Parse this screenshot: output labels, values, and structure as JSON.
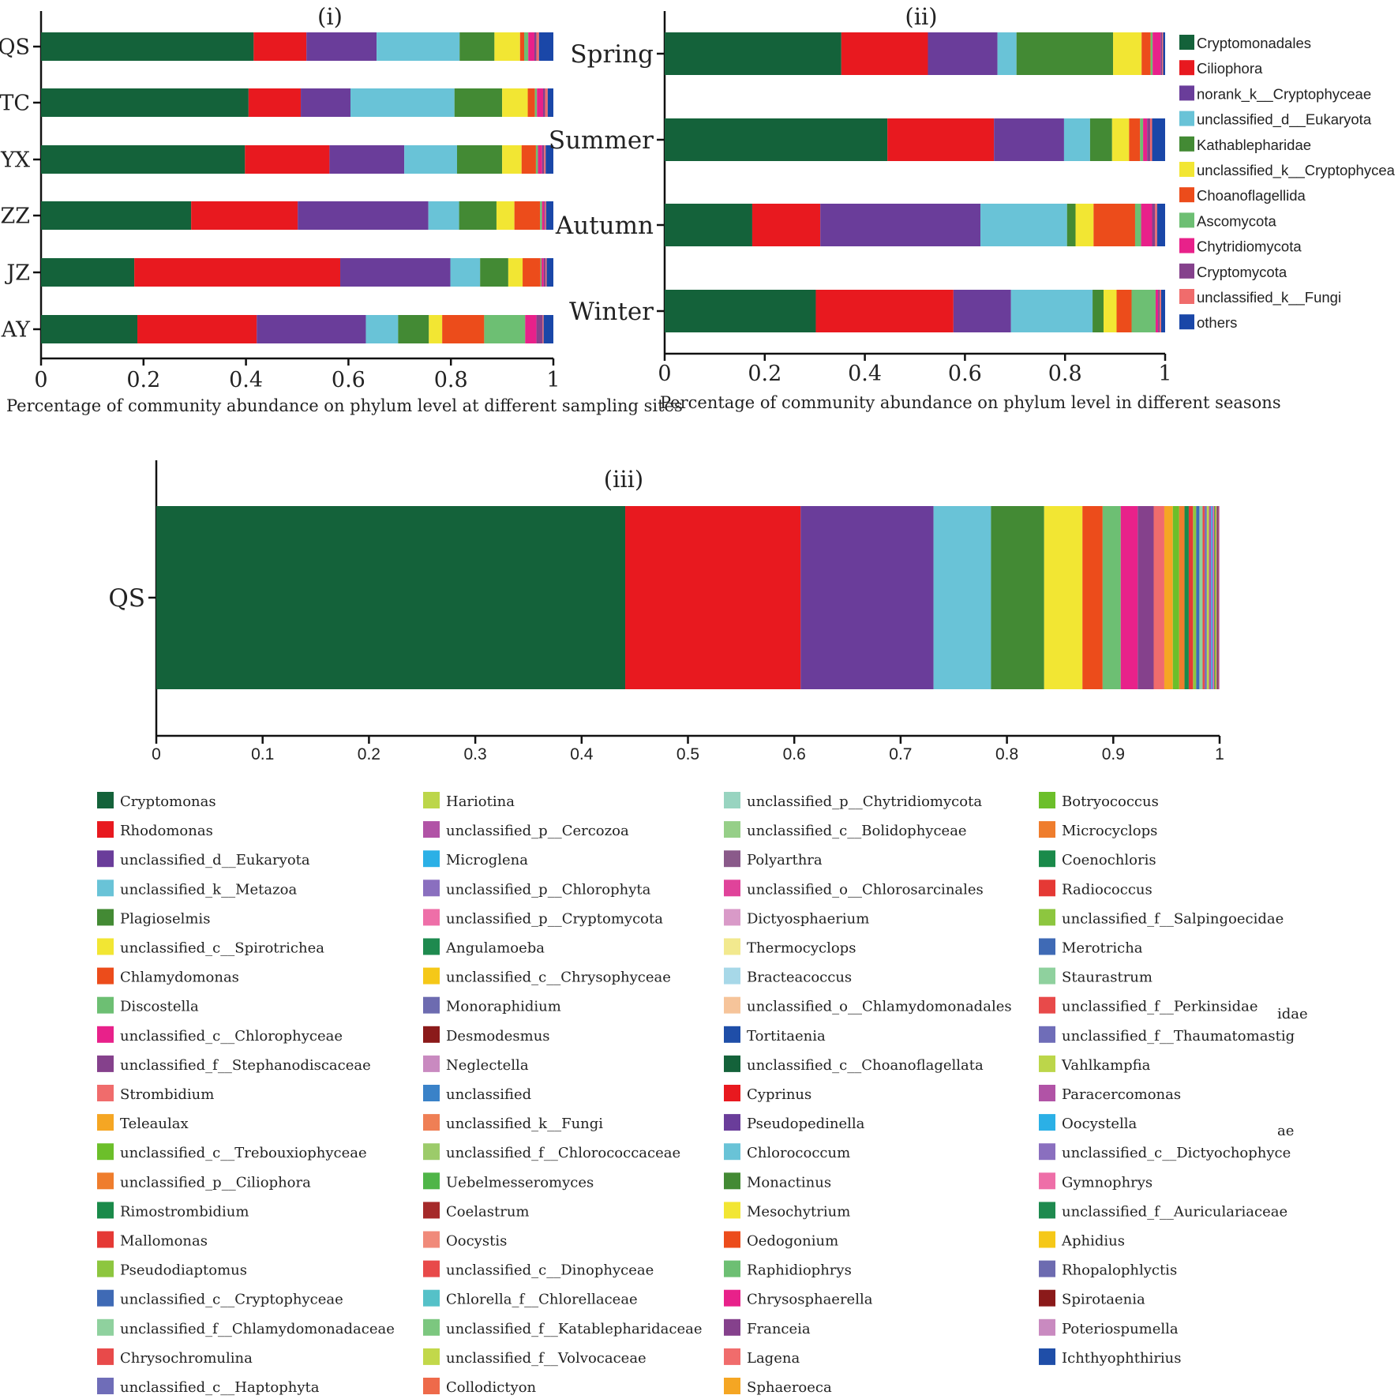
{
  "colors": {
    "Cryptomonadales": "#14623a",
    "Ciliophora": "#e8191f",
    "norank_k__Cryptophyceae": "#6a3d9a",
    "unclassified_d__Eukaryota": "#69c3d7",
    "Kathablepharidae": "#438a34",
    "unclassified_k__Cryptophycea": "#f2e633",
    "Choanoflagellida": "#ec4c1b",
    "Ascomycota": "#6dbf73",
    "Chytridiomycota": "#e8218a",
    "Cryptomycota": "#85418c",
    "unclassified_k__Fungi": "#f06c6c",
    "others": "#1a47a8"
  },
  "chart_data": [
    {
      "id": "i",
      "type": "bar",
      "orientation": "horizontal",
      "stacked": true,
      "title": "(i)",
      "xlabel": "Percentage of community abundance on phylum level at different sampling sites",
      "ylabel": "",
      "xlim": [
        0,
        1
      ],
      "x_ticks": [
        "0",
        "0.2",
        "0.4",
        "0.6",
        "0.8",
        "1"
      ],
      "categories": [
        "QS",
        "TC",
        "YX",
        "ZZ",
        "JZ",
        "AY"
      ],
      "series": [
        {
          "name": "Cryptomonadales",
          "values": [
            0.415,
            0.405,
            0.398,
            0.293,
            0.182,
            0.188
          ]
        },
        {
          "name": "Ciliophora",
          "values": [
            0.103,
            0.102,
            0.165,
            0.208,
            0.402,
            0.233
          ]
        },
        {
          "name": "norank_k__Cryptophyceae",
          "values": [
            0.137,
            0.097,
            0.146,
            0.255,
            0.215,
            0.213
          ]
        },
        {
          "name": "unclassified_d__Eukaryota",
          "values": [
            0.162,
            0.203,
            0.103,
            0.06,
            0.058,
            0.063
          ]
        },
        {
          "name": "Kathablepharidae",
          "values": [
            0.068,
            0.093,
            0.088,
            0.073,
            0.055,
            0.06
          ]
        },
        {
          "name": "unclassified_k__Cryptophycea",
          "values": [
            0.05,
            0.05,
            0.038,
            0.035,
            0.028,
            0.026
          ]
        },
        {
          "name": "Choanoflagellida",
          "values": [
            0.008,
            0.014,
            0.028,
            0.05,
            0.035,
            0.082
          ]
        },
        {
          "name": "Ascomycota",
          "values": [
            0.008,
            0.004,
            0.004,
            0.004,
            0.002,
            0.08
          ]
        },
        {
          "name": "Chytridiomycota",
          "values": [
            0.012,
            0.012,
            0.008,
            0.004,
            0.004,
            0.022
          ]
        },
        {
          "name": "Cryptomycota",
          "values": [
            0.004,
            0.004,
            0.004,
            0.002,
            0.004,
            0.012
          ]
        },
        {
          "name": "unclassified_k__Fungi",
          "values": [
            0.005,
            0.005,
            0.003,
            0.002,
            0.002,
            0.002
          ]
        },
        {
          "name": "others",
          "values": [
            0.028,
            0.011,
            0.015,
            0.014,
            0.013,
            0.019
          ]
        }
      ]
    },
    {
      "id": "ii",
      "type": "bar",
      "orientation": "horizontal",
      "stacked": true,
      "title": "(ii)",
      "xlabel": "Percentage of community abundance on phylum level in different seasons",
      "ylabel": "",
      "xlim": [
        0,
        1
      ],
      "x_ticks": [
        "0",
        "0.2",
        "0.4",
        "0.6",
        "0.8",
        "1"
      ],
      "categories": [
        "Spring",
        "Summer",
        "Autumn",
        "Winter"
      ],
      "series": [
        {
          "name": "Cryptomonadales",
          "values": [
            0.353,
            0.445,
            0.175,
            0.302
          ]
        },
        {
          "name": "Ciliophora",
          "values": [
            0.173,
            0.213,
            0.136,
            0.275
          ]
        },
        {
          "name": "norank_k__Cryptophyceae",
          "values": [
            0.139,
            0.14,
            0.32,
            0.115
          ]
        },
        {
          "name": "unclassified_d__Eukaryota",
          "values": [
            0.038,
            0.052,
            0.173,
            0.163
          ]
        },
        {
          "name": "Kathablepharidae",
          "values": [
            0.193,
            0.044,
            0.017,
            0.022
          ]
        },
        {
          "name": "unclassified_k__Cryptophycea",
          "values": [
            0.057,
            0.034,
            0.036,
            0.026
          ]
        },
        {
          "name": "Choanoflagellida",
          "values": [
            0.018,
            0.022,
            0.083,
            0.03
          ]
        },
        {
          "name": "Ascomycota",
          "values": [
            0.004,
            0.006,
            0.012,
            0.048
          ]
        },
        {
          "name": "Chytridiomycota",
          "values": [
            0.016,
            0.008,
            0.022,
            0.005
          ]
        },
        {
          "name": "Cryptomycota",
          "values": [
            0.003,
            0.006,
            0.006,
            0.003
          ]
        },
        {
          "name": "unclassified_k__Fungi",
          "values": [
            0.002,
            0.004,
            0.004,
            0.003
          ]
        },
        {
          "name": "others",
          "values": [
            0.01,
            0.026,
            0.017,
            0.008
          ]
        }
      ],
      "legend_position": "right"
    },
    {
      "id": "iii",
      "type": "bar",
      "orientation": "horizontal",
      "stacked": true,
      "title": "(iii)",
      "xlabel": "",
      "ylabel": "",
      "xlim": [
        0,
        1
      ],
      "x_ticks": [
        "0",
        "0.1",
        "0.2",
        "0.3",
        "0.4",
        "0.5",
        "0.6",
        "0.7",
        "0.8",
        "0.9",
        "1"
      ],
      "categories": [
        "QS"
      ],
      "legend_position": "bottom",
      "series": [
        {
          "name": "Cryptomonas",
          "color": "#14623a",
          "value": 0.441
        },
        {
          "name": "Rhodomonas",
          "color": "#e8191f",
          "value": 0.165
        },
        {
          "name": "unclassified_d__Eukaryota",
          "color": "#6a3d9a",
          "value": 0.125
        },
        {
          "name": "unclassified_k__Metazoa",
          "color": "#69c3d7",
          "value": 0.054
        },
        {
          "name": "Plagioselmis",
          "color": "#438a34",
          "value": 0.05
        },
        {
          "name": "unclassified_c__Spirotrichea",
          "color": "#f2e633",
          "value": 0.036
        },
        {
          "name": "Chlamydomonas",
          "color": "#ec4c1b",
          "value": 0.019
        },
        {
          "name": "Discostella",
          "color": "#6dbf73",
          "value": 0.017
        },
        {
          "name": "unclassified_c__Chlorophyceae",
          "color": "#e8218a",
          "value": 0.016
        },
        {
          "name": "unclassified_f__Stephanodiscaceae",
          "color": "#85418c",
          "value": 0.015
        },
        {
          "name": "Strombidium",
          "color": "#f06c6c",
          "value": 0.01
        },
        {
          "name": "Teleaulax",
          "color": "#f5a623",
          "value": 0.008
        },
        {
          "name": "unclassified_c__Trebouxiophyceae",
          "color": "#6cbf2a",
          "value": 0.006
        },
        {
          "name": "unclassified_p__Ciliophora",
          "color": "#ef7d2d",
          "value": 0.005
        },
        {
          "name": "Rimostrombidium",
          "color": "#1a8a4a",
          "value": 0.004
        },
        {
          "name": "Mallomonas",
          "color": "#e53935",
          "value": 0.004
        },
        {
          "name": "Pseudodiaptomus",
          "color": "#8dc63f",
          "value": 0.003
        },
        {
          "name": "unclassified_c__Cryptophyceae",
          "color": "#3f6ab5",
          "value": 0.003
        },
        {
          "name": "unclassified_f__Chlamydomonadaceae",
          "color": "#8fd19e",
          "value": 0.003
        },
        {
          "name": "Chrysochromulina",
          "color": "#e84a4a",
          "value": 0.002
        },
        {
          "name": "unclassified_c__Haptophyta",
          "color": "#6f6db8",
          "value": 0.002
        },
        {
          "name": "Hariotina",
          "color": "#bcd64a",
          "value": 0.002
        },
        {
          "name": "unclassified_p__Cercozoa",
          "color": "#b153a6",
          "value": 0.002
        },
        {
          "name": "Microglena",
          "color": "#2bb0e6",
          "value": 0.001
        },
        {
          "name": "unclassified_p__Chlorophyta",
          "color": "#8a6fbf",
          "value": 0.001
        },
        {
          "name": "unclassified_p__Cryptomycota",
          "color": "#ee6fa8",
          "value": 0.001
        },
        {
          "name": "Angulamoeba",
          "color": "#1e8a4f",
          "value": 0.001
        },
        {
          "name": "unclassified_c__Chrysophyceae",
          "color": "#f5c818",
          "value": 0.001
        },
        {
          "name": "Monoraphidium",
          "color": "#6d6bb0",
          "value": 0.001
        },
        {
          "name": "Desmodesmus",
          "color": "#8b1a1a",
          "value": 0.001
        },
        {
          "name": "Neglectella",
          "color": "#c98ac0",
          "value": 0.001
        },
        {
          "name": "unclassified",
          "color": "#3a82c8",
          "value": 0.001
        },
        {
          "name": "unclassified_k__Fungi",
          "color": "#ef7f55",
          "value": 0.001
        },
        {
          "name": "unclassified_f__Chlorococcaceae",
          "color": "#9ccb6a",
          "value": 0.001
        },
        {
          "name": "Uebelmesseromyces",
          "color": "#4fb548",
          "value": 0.001
        },
        {
          "name": "Coelastrum",
          "color": "#a52a2a",
          "value": 0.001
        },
        {
          "name": "Oocystis",
          "color": "#f08a7a",
          "value": 0.001
        },
        {
          "name": "unclassified_c__Dinophyceae",
          "color": "#e84a4a",
          "value": 0.001
        },
        {
          "name": "Chlorella_f__Chlorellaceae",
          "color": "#55c1c8",
          "value": 0.001
        },
        {
          "name": "unclassified_f__Katablepharidaceae",
          "color": "#7cc77f",
          "value": 0.001
        },
        {
          "name": "unclassified_f__Volvocaceae",
          "color": "#c2d84a",
          "value": 0.001
        },
        {
          "name": "Collodictyon",
          "color": "#ee6a4a",
          "value": 0.001
        },
        {
          "name": "unclassified_p__Chytridiomycota",
          "color": "#98d4c0",
          "value": 0.001
        },
        {
          "name": "unclassified_c__Bolidophyceae",
          "color": "#96cf88",
          "value": 0.001
        },
        {
          "name": "Polyarthra",
          "color": "#8a5a8a",
          "value": 0.001
        },
        {
          "name": "unclassified_o__Chlorosarcinales",
          "color": "#e0439a",
          "value": 0.001
        },
        {
          "name": "Dictyosphaerium",
          "color": "#d99ac8",
          "value": 0.001
        },
        {
          "name": "Thermocyclops",
          "color": "#f2e98e",
          "value": 0.001
        },
        {
          "name": "Bracteacoccus",
          "color": "#a7d8e8",
          "value": 0.001
        },
        {
          "name": "unclassified_o__Chlamydomonadales",
          "color": "#f6c49a",
          "value": 0.001
        },
        {
          "name": "Tortitaenia",
          "color": "#1f4ea8",
          "value": 0.001
        },
        {
          "name": "unclassified_c__Choanoflagellata",
          "color": "#14623a",
          "value": 0.001
        },
        {
          "name": "Cyprinus",
          "color": "#e8191f",
          "value": 0.001
        },
        {
          "name": "Pseudopedinella",
          "color": "#6a3d9a",
          "value": 0.001
        },
        {
          "name": "Chlorococcum",
          "color": "#69c3d7",
          "value": 0.001
        },
        {
          "name": "Monactinus",
          "color": "#438a34",
          "value": 0.001
        },
        {
          "name": "Mesochytrium",
          "color": "#f2e633",
          "value": 0.001
        },
        {
          "name": "Oedogonium",
          "color": "#ec4c1b",
          "value": 0.001
        },
        {
          "name": "Raphidiophrys",
          "color": "#6dbf73",
          "value": 0.001
        },
        {
          "name": "Chrysosphaerella",
          "color": "#e8218a",
          "value": 0.001
        },
        {
          "name": "Franceia",
          "color": "#85418c",
          "value": 0.001
        },
        {
          "name": "Lagena",
          "color": "#f06c6c",
          "value": 0.001
        },
        {
          "name": "Sphaeroeca",
          "color": "#f5a623",
          "value": 0.001
        },
        {
          "name": "Botryococcus",
          "color": "#6cbf2a",
          "value": 0.001
        },
        {
          "name": "Microcyclops",
          "color": "#ef7d2d",
          "value": 0.001
        },
        {
          "name": "Coenochloris",
          "color": "#1a8a4a",
          "value": 0.001
        },
        {
          "name": "Radiococcus",
          "color": "#e53935",
          "value": 0.001
        },
        {
          "name": "unclassified_f__Salpingoecidae",
          "color": "#8dc63f",
          "value": 0.001
        },
        {
          "name": "Merotricha",
          "color": "#3f6ab5",
          "value": 0.001
        },
        {
          "name": "Staurastrum",
          "color": "#8fd19e",
          "value": 0.001
        },
        {
          "name": "unclassified_f__Perkinsidae",
          "color": "#e84a4a",
          "value": 0.001
        },
        {
          "name": "unclassified_f__Thaumatomastig",
          "color": "#6f6db8",
          "value": 0.001
        },
        {
          "name": "Vahlkampfia",
          "color": "#bcd64a",
          "value": 0.001
        },
        {
          "name": "Paracercomonas",
          "color": "#b153a6",
          "value": 0.001
        },
        {
          "name": "Oocystella",
          "color": "#2bb0e6",
          "value": 0.001
        },
        {
          "name": "unclassified_c__Dictyochophyce",
          "color": "#8a6fbf",
          "value": 0.001
        },
        {
          "name": "Gymnophrys",
          "color": "#ee6fa8",
          "value": 0.001
        },
        {
          "name": "unclassified_f__Auriculariaceae",
          "color": "#1e8a4f",
          "value": 0.001
        },
        {
          "name": "Aphidius",
          "color": "#f5c818",
          "value": 0.001
        },
        {
          "name": "Rhopalophlyctis",
          "color": "#6d6bb0",
          "value": 0.001
        },
        {
          "name": "Spirotaenia",
          "color": "#8b1a1a",
          "value": 0.001
        },
        {
          "name": "Poteriospumella",
          "color": "#c98ac0",
          "value": 0.001
        },
        {
          "name": "Ichthyophthirius",
          "color": "#1f4ea8",
          "value": 0.001
        }
      ],
      "legend_overflow_text": [
        "idae",
        "ae"
      ]
    }
  ]
}
